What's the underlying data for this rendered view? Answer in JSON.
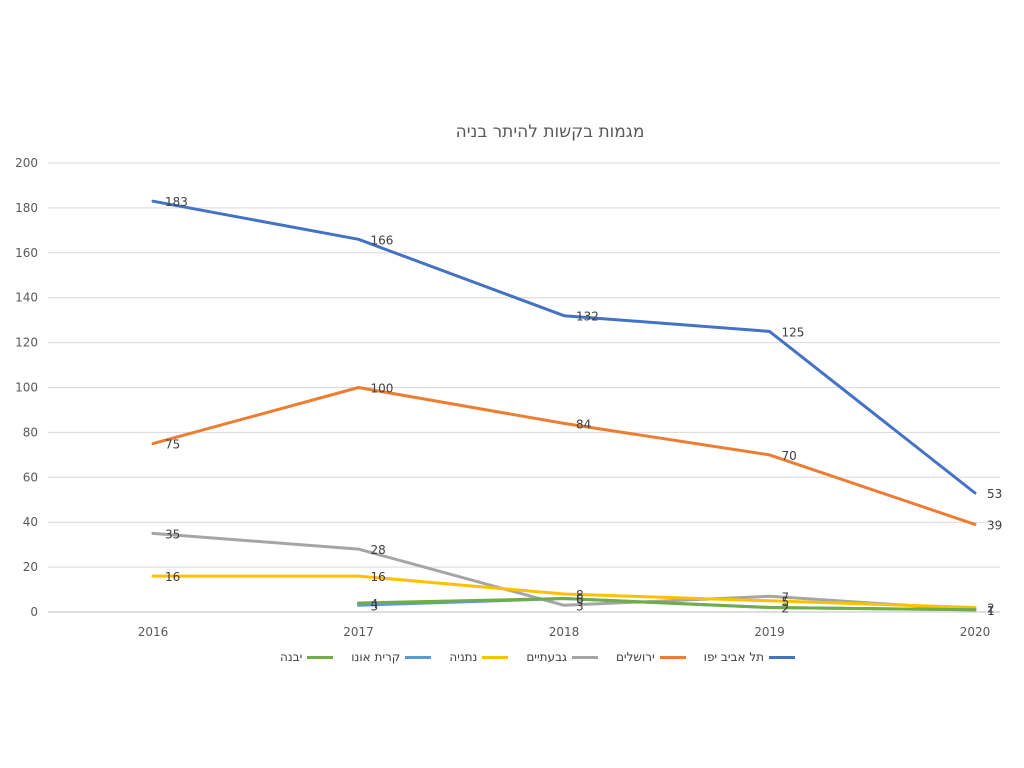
{
  "chart_data": {
    "type": "line",
    "title": "מגמות בקשות להיתר בניה",
    "x": [
      "2016",
      "2017",
      "2018",
      "2019",
      "2020"
    ],
    "ylim": [
      0,
      200
    ],
    "yticks": [
      0,
      20,
      40,
      60,
      80,
      100,
      120,
      140,
      160,
      180,
      200
    ],
    "grid": true,
    "legend": "bottom",
    "series": [
      {
        "name": "תל אביב יפו",
        "color": "#4472C4",
        "values": [
          183,
          166,
          132,
          125,
          53
        ]
      },
      {
        "name": "ירושלים",
        "color": "#ED7D31",
        "values": [
          75,
          100,
          84,
          70,
          39
        ]
      },
      {
        "name": "גבעתיים",
        "color": "#A5A5A5",
        "values": [
          35,
          28,
          3,
          7,
          1
        ]
      },
      {
        "name": "נתניה",
        "color": "#FFC000",
        "values": [
          16,
          16,
          8,
          5,
          2
        ]
      },
      {
        "name": "קרית אונו",
        "color": "#5B9BD5",
        "values": [
          null,
          3,
          6,
          2,
          1
        ]
      },
      {
        "name": "יבנה",
        "color": "#70AD47",
        "values": [
          null,
          4,
          6,
          2,
          1
        ]
      }
    ]
  }
}
